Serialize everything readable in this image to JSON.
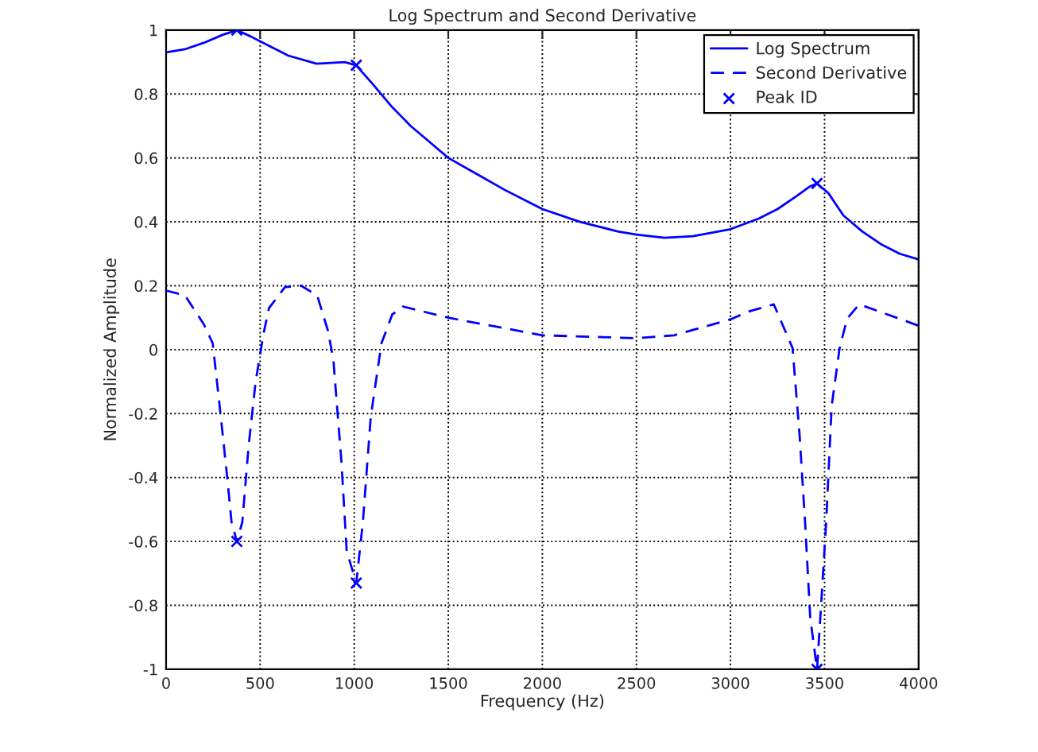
{
  "chart_data": {
    "type": "line",
    "title": "Log Spectrum and Second Derivative",
    "xlabel": "Frequency (Hz)",
    "ylabel": "Normalized Amplitude",
    "xlim": [
      0,
      4000
    ],
    "xticks": [
      0,
      500,
      1000,
      1500,
      2000,
      2500,
      3000,
      3500,
      4000
    ],
    "ylim": [
      -1,
      1
    ],
    "yticks": [
      -1,
      -0.8,
      -0.6,
      -0.4,
      -0.2,
      0,
      0.2,
      0.4,
      0.6,
      0.8,
      1
    ],
    "grid": true,
    "legend": "top right",
    "series": [
      {
        "name": "Log Spectrum",
        "color": "#0000ff",
        "line_style": "solid",
        "x": [
          0,
          100,
          200,
          300,
          376,
          450,
          550,
          650,
          800,
          950,
          1010,
          1100,
          1200,
          1300,
          1400,
          1500,
          1650,
          1800,
          2000,
          2200,
          2400,
          2500,
          2650,
          2800,
          3000,
          3150,
          3250,
          3350,
          3420,
          3460,
          3520,
          3600,
          3700,
          3800,
          3900,
          4000
        ],
        "values": [
          0.93,
          0.94,
          0.96,
          0.985,
          1,
          0.98,
          0.95,
          0.92,
          0.895,
          0.9,
          0.89,
          0.83,
          0.76,
          0.7,
          0.65,
          0.6,
          0.55,
          0.5,
          0.44,
          0.4,
          0.37,
          0.36,
          0.35,
          0.355,
          0.377,
          0.41,
          0.44,
          0.48,
          0.51,
          0.52,
          0.49,
          0.42,
          0.37,
          0.33,
          0.3,
          0.282
        ]
      },
      {
        "name": "Second Derivative",
        "color": "#0000ff",
        "line_style": "dashed",
        "x": [
          0,
          100,
          200,
          248,
          291,
          325,
          348,
          376,
          405,
          439,
          476,
          518,
          547,
          632,
          718,
          803,
          860,
          889,
          932,
          960,
          1011,
          1046,
          1088,
          1145,
          1202,
          1260,
          1500,
          2000,
          2500,
          2700,
          3000,
          3100,
          3230,
          3330,
          3367,
          3396,
          3424,
          3460,
          3481,
          3509,
          3538,
          3580,
          3620,
          3684,
          4000
        ],
        "values": [
          0.185,
          0.17,
          0.08,
          0.02,
          -0.21,
          -0.4,
          -0.54,
          -0.6,
          -0.54,
          -0.3,
          -0.1,
          0.05,
          0.13,
          0.196,
          0.2,
          0.17,
          0.06,
          -0.03,
          -0.35,
          -0.63,
          -0.73,
          -0.54,
          -0.21,
          0.02,
          0.11,
          0.135,
          0.1,
          0.045,
          0.036,
          0.045,
          0.095,
          0.12,
          0.142,
          0.005,
          -0.265,
          -0.535,
          -0.84,
          -1,
          -0.805,
          -0.535,
          -0.175,
          0.005,
          0.097,
          0.142,
          0.075
        ]
      },
      {
        "name": "Peak ID",
        "color": "#0000ff",
        "type": "scatter",
        "marker": "cross",
        "x": [
          376,
          1011,
          3460,
          376,
          1011,
          3460
        ],
        "values": [
          1,
          0.89,
          0.52,
          -0.6,
          -0.73,
          -1
        ]
      }
    ]
  }
}
